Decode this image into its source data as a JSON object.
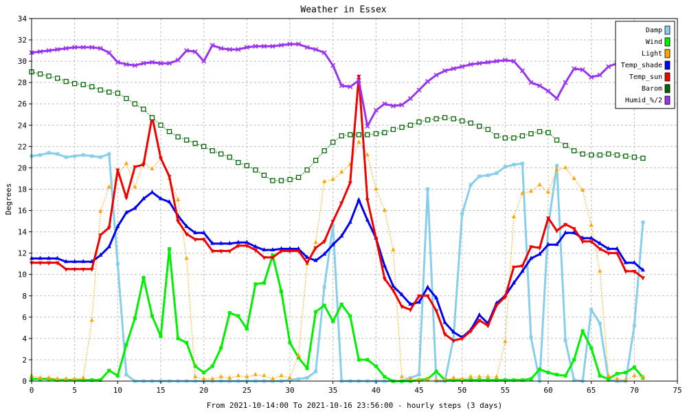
{
  "chart_data": {
    "type": "line",
    "title": "Weather in Essex",
    "xlabel": "From 2021-10-14:00 To 2021-10-16 23:56:00 - hourly steps (3 days)",
    "ylabel": "Degrees",
    "xlim": [
      0,
      75
    ],
    "ylim": [
      0,
      34
    ],
    "xticks": [
      0,
      5,
      10,
      15,
      20,
      25,
      30,
      35,
      40,
      45,
      50,
      55,
      60,
      65,
      70,
      75
    ],
    "yticks": [
      0,
      2,
      4,
      6,
      8,
      10,
      12,
      14,
      16,
      18,
      20,
      22,
      24,
      26,
      28,
      30,
      32,
      34
    ],
    "grid": true,
    "legend_position": "top-right",
    "series": [
      {
        "name": "Damp",
        "color": "#87ceeb",
        "marker": "square",
        "style": "solid",
        "values": [
          21.1,
          21.2,
          21.4,
          21.3,
          21,
          21.1,
          21.2,
          21.1,
          21,
          21.3,
          11,
          0.6,
          0,
          0,
          0,
          0,
          0,
          0,
          0,
          0,
          0,
          0,
          0,
          0,
          0,
          0,
          0,
          0,
          0,
          0,
          0.1,
          0.2,
          0.3,
          0.9,
          8.8,
          14.6,
          0,
          0,
          0,
          0,
          0,
          0,
          0,
          0,
          0.3,
          0.6,
          18,
          0,
          0,
          4,
          15.7,
          18.4,
          19.2,
          19.3,
          19.5,
          20.1,
          20.3,
          20.4,
          4.1,
          0,
          14.5,
          20.2,
          3.8,
          0.1,
          0,
          6.7,
          5.4,
          0.1,
          0,
          0,
          5.2,
          14.9
        ]
      },
      {
        "name": "Wind",
        "color": "#00ee00",
        "marker": "square",
        "style": "solid",
        "values": [
          0.2,
          0.2,
          0.2,
          0.1,
          0.1,
          0.1,
          0.1,
          0.1,
          0.1,
          1,
          0.5,
          3.4,
          5.9,
          9.7,
          6.1,
          4.2,
          12.4,
          4,
          3.6,
          1.4,
          0.8,
          1.4,
          3.1,
          6.4,
          6.1,
          4.9,
          9.1,
          9.2,
          11.8,
          8.4,
          3.6,
          2.2,
          1.2,
          6.5,
          7.1,
          5.6,
          7.2,
          6.1,
          2,
          2,
          1.4,
          0.4,
          0,
          0,
          0,
          0.1,
          0.2,
          0.9,
          0.1,
          0.1,
          0.1,
          0.1,
          0.1,
          0.1,
          0.1,
          0.1,
          0.1,
          0.1,
          0.2,
          1.1,
          0.8,
          0.6,
          0.5,
          2,
          4.7,
          3.1,
          0.5,
          0.2,
          0.7,
          0.8,
          1.3,
          0.3
        ]
      },
      {
        "name": "Light",
        "color": "#ffa500",
        "marker": "triangle-up",
        "style": "dotted",
        "values": [
          0.5,
          0.3,
          0.3,
          0.2,
          0.2,
          0.2,
          0.3,
          5.7,
          15.9,
          18.2,
          19.3,
          20.4,
          18.2,
          20.5,
          19.9,
          20.9,
          19,
          17,
          11.5,
          0.4,
          0.2,
          0.2,
          0.4,
          0.3,
          0.5,
          0.4,
          0.6,
          0.5,
          0.2,
          0.5,
          0.3,
          2.4,
          11,
          13,
          18.7,
          18.9,
          19.6,
          20.3,
          22.4,
          21.2,
          18,
          16,
          12.3,
          0.4,
          0.2,
          0.1,
          0.2,
          0.1,
          0.1,
          0.3,
          0.2,
          0.4,
          0.4,
          0.4,
          0.4,
          3.7,
          15.4,
          17.6,
          17.8,
          18.4,
          17.7,
          19.8,
          20,
          19,
          17.9,
          14.6,
          10.3,
          0.5,
          0.2,
          0.1,
          0.5,
          0.4
        ]
      },
      {
        "name": "Temp_shade",
        "color": "#0000ee",
        "marker": "triangle-up",
        "style": "solid",
        "values": [
          11.5,
          11.5,
          11.5,
          11.5,
          11.2,
          11.2,
          11.2,
          11.2,
          11.8,
          12.6,
          14.5,
          15.8,
          16.2,
          17.1,
          17.7,
          17.1,
          16.8,
          15.5,
          14.5,
          13.9,
          13.9,
          12.9,
          12.9,
          12.9,
          13,
          13,
          12.6,
          12.3,
          12.3,
          12.4,
          12.4,
          12.4,
          11.6,
          11.3,
          11.9,
          12.8,
          13.6,
          14.9,
          17,
          15.1,
          13.4,
          10.8,
          8.9,
          8.1,
          7.2,
          7.4,
          8.8,
          7.8,
          5.5,
          4.6,
          4.1,
          4.8,
          6.2,
          5.4,
          7.3,
          8,
          9.2,
          10.3,
          11.5,
          11.9,
          12.8,
          12.8,
          13.9,
          13.9,
          13.4,
          13.4,
          12.9,
          12.4,
          12.4,
          11.1,
          11.1,
          10.4
        ]
      },
      {
        "name": "Temp_sun",
        "color": "#ee0000",
        "marker": "triangle-down",
        "style": "solid",
        "values": [
          11.1,
          11.1,
          11.1,
          11.1,
          10.5,
          10.5,
          10.5,
          10.5,
          13.7,
          14.4,
          19.8,
          17.2,
          20.1,
          20.3,
          24.8,
          20.9,
          19.2,
          15,
          13.8,
          13.3,
          13.3,
          12.2,
          12.2,
          12.2,
          12.7,
          12.7,
          12.3,
          11.6,
          11.6,
          12.2,
          12.2,
          12.2,
          11.1,
          12.5,
          13.1,
          15,
          16.7,
          18.6,
          28.6,
          17,
          13.4,
          9.6,
          8.5,
          7,
          6.7,
          8,
          8,
          6.6,
          4.4,
          3.8,
          4,
          4.7,
          5.7,
          5.2,
          7.1,
          7.9,
          10.7,
          10.8,
          12.6,
          12.5,
          15.3,
          14.1,
          14.7,
          14.3,
          13.1,
          13.1,
          12.4,
          12,
          12,
          10.3,
          10.3,
          9.7
        ]
      },
      {
        "name": "Barom",
        "color": "#006400",
        "marker": "square-open",
        "style": "dotted",
        "values": [
          29,
          28.8,
          28.6,
          28.4,
          28.1,
          27.9,
          27.8,
          27.6,
          27.3,
          27.1,
          27,
          26.5,
          26,
          25.5,
          24.7,
          24,
          23.4,
          22.9,
          22.6,
          22.3,
          22,
          21.6,
          21.3,
          21,
          20.5,
          20.2,
          19.8,
          19.3,
          18.8,
          18.8,
          18.9,
          19.1,
          19.8,
          20.7,
          21.6,
          22.4,
          23,
          23.1,
          23.1,
          23.1,
          23.2,
          23.3,
          23.6,
          23.8,
          24,
          24.3,
          24.5,
          24.6,
          24.7,
          24.6,
          24.4,
          24.2,
          23.9,
          23.6,
          23,
          22.8,
          22.8,
          23,
          23.2,
          23.4,
          23.3,
          22.6,
          22.1,
          21.6,
          21.3,
          21.2,
          21.2,
          21.3,
          21.2,
          21.1,
          21,
          20.9
        ]
      },
      {
        "name": "Humid_%/2",
        "color": "#9933ee",
        "marker": "x",
        "style": "solid",
        "values": [
          30.8,
          30.9,
          31,
          31.1,
          31.2,
          31.3,
          31.3,
          31.3,
          31.2,
          30.8,
          29.9,
          29.7,
          29.6,
          29.8,
          29.9,
          29.8,
          29.8,
          30.1,
          31,
          30.9,
          30,
          31.5,
          31.2,
          31.1,
          31.1,
          31.3,
          31.4,
          31.4,
          31.4,
          31.5,
          31.6,
          31.6,
          31.3,
          31.1,
          30.8,
          29.6,
          27.7,
          27.6,
          28.2,
          23.9,
          25.4,
          26,
          25.8,
          25.9,
          26.5,
          27.3,
          28.1,
          28.7,
          29.1,
          29.3,
          29.5,
          29.7,
          29.8,
          29.9,
          30,
          30.1,
          30,
          29.1,
          28,
          27.7,
          27.2,
          26.5,
          28,
          29.3,
          29.2,
          28.5,
          28.7,
          29.5,
          29.8,
          30.1,
          30.2,
          30.5
        ]
      }
    ]
  }
}
